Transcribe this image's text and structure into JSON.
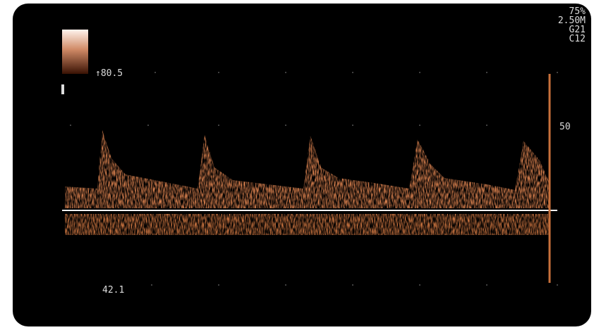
{
  "status": {
    "lines": [
      "75%",
      "2.50M",
      "G21",
      "C12"
    ]
  },
  "scale": {
    "top_label": "↑80.5",
    "marker_label": "50",
    "bottom_label": "42.1"
  }
}
